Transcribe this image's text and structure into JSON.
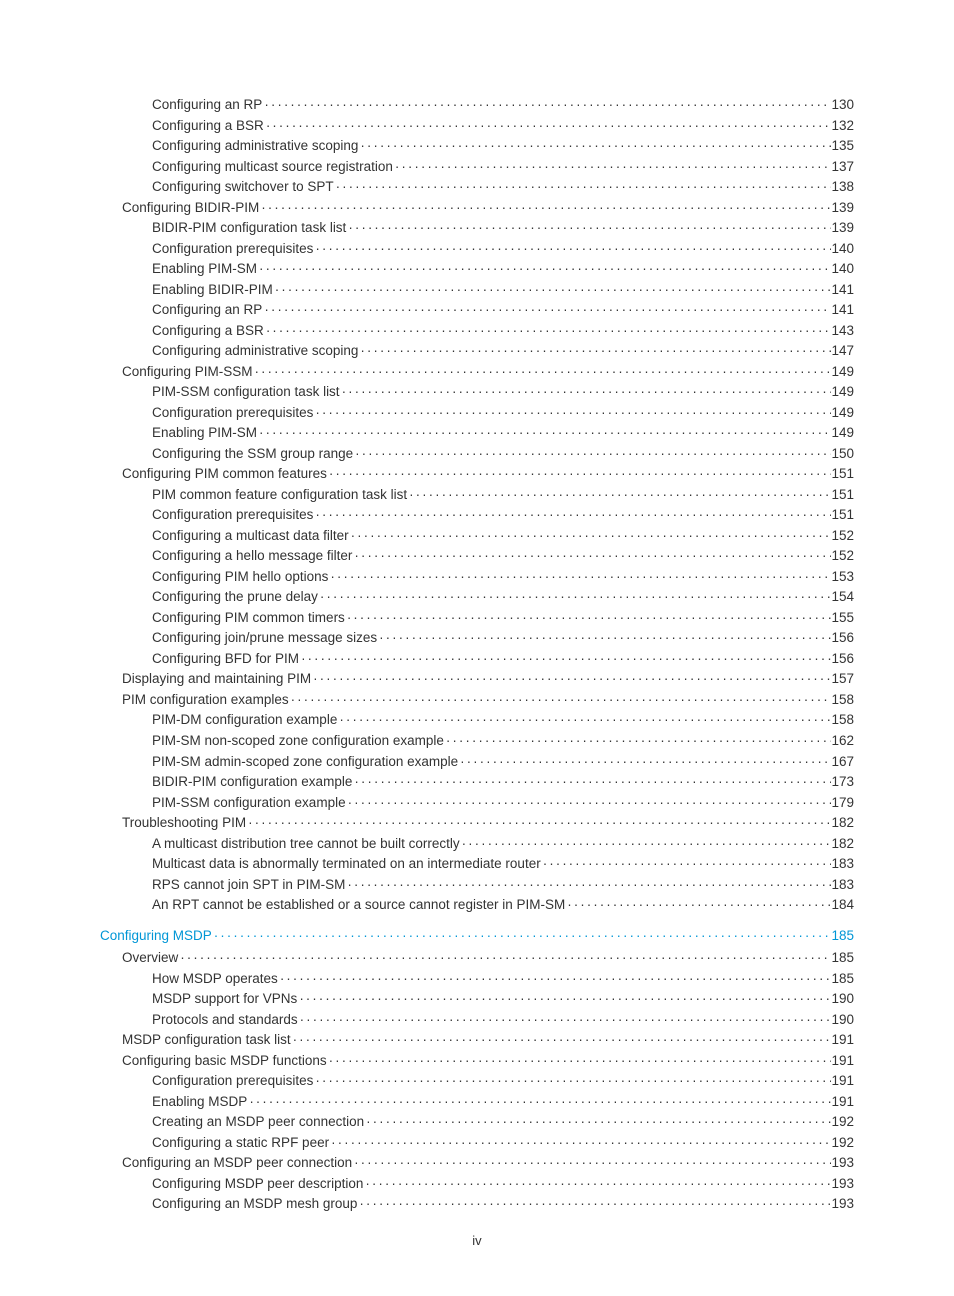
{
  "page_number_label": "iv",
  "entries": [
    {
      "level": 2,
      "title": "Configuring an RP",
      "page": "130",
      "heading": false
    },
    {
      "level": 2,
      "title": "Configuring a BSR",
      "page": "132",
      "heading": false
    },
    {
      "level": 2,
      "title": "Configuring administrative scoping",
      "page": "135",
      "heading": false
    },
    {
      "level": 2,
      "title": "Configuring multicast source registration",
      "page": "137",
      "heading": false
    },
    {
      "level": 2,
      "title": "Configuring switchover to SPT",
      "page": "138",
      "heading": false
    },
    {
      "level": 1,
      "title": "Configuring BIDIR-PIM",
      "page": "139",
      "heading": false
    },
    {
      "level": 2,
      "title": "BIDIR-PIM configuration task list",
      "page": "139",
      "heading": false
    },
    {
      "level": 2,
      "title": "Configuration prerequisites",
      "page": "140",
      "heading": false
    },
    {
      "level": 2,
      "title": "Enabling PIM-SM",
      "page": "140",
      "heading": false
    },
    {
      "level": 2,
      "title": "Enabling BIDIR-PIM",
      "page": "141",
      "heading": false
    },
    {
      "level": 2,
      "title": "Configuring an RP",
      "page": "141",
      "heading": false
    },
    {
      "level": 2,
      "title": "Configuring a BSR",
      "page": "143",
      "heading": false
    },
    {
      "level": 2,
      "title": "Configuring administrative scoping",
      "page": "147",
      "heading": false
    },
    {
      "level": 1,
      "title": "Configuring PIM-SSM",
      "page": "149",
      "heading": false
    },
    {
      "level": 2,
      "title": "PIM-SSM configuration task list",
      "page": "149",
      "heading": false
    },
    {
      "level": 2,
      "title": "Configuration prerequisites",
      "page": "149",
      "heading": false
    },
    {
      "level": 2,
      "title": "Enabling PIM-SM",
      "page": "149",
      "heading": false
    },
    {
      "level": 2,
      "title": "Configuring the SSM group range",
      "page": "150",
      "heading": false
    },
    {
      "level": 1,
      "title": "Configuring PIM common features",
      "page": "151",
      "heading": false
    },
    {
      "level": 2,
      "title": "PIM common feature configuration task list",
      "page": "151",
      "heading": false
    },
    {
      "level": 2,
      "title": "Configuration prerequisites",
      "page": "151",
      "heading": false
    },
    {
      "level": 2,
      "title": "Configuring a multicast data filter",
      "page": "152",
      "heading": false
    },
    {
      "level": 2,
      "title": "Configuring a hello message filter",
      "page": "152",
      "heading": false
    },
    {
      "level": 2,
      "title": "Configuring PIM hello options",
      "page": "153",
      "heading": false
    },
    {
      "level": 2,
      "title": "Configuring the prune delay",
      "page": "154",
      "heading": false
    },
    {
      "level": 2,
      "title": "Configuring PIM common timers",
      "page": "155",
      "heading": false
    },
    {
      "level": 2,
      "title": "Configuring join/prune message sizes",
      "page": "156",
      "heading": false
    },
    {
      "level": 2,
      "title": "Configuring BFD for PIM",
      "page": "156",
      "heading": false
    },
    {
      "level": 1,
      "title": "Displaying and maintaining PIM",
      "page": "157",
      "heading": false
    },
    {
      "level": 1,
      "title": "PIM configuration examples",
      "page": "158",
      "heading": false
    },
    {
      "level": 2,
      "title": "PIM-DM configuration example",
      "page": "158",
      "heading": false
    },
    {
      "level": 2,
      "title": "PIM-SM non-scoped zone configuration example",
      "page": "162",
      "heading": false
    },
    {
      "level": 2,
      "title": "PIM-SM admin-scoped zone configuration example",
      "page": "167",
      "heading": false
    },
    {
      "level": 2,
      "title": "BIDIR-PIM configuration example",
      "page": "173",
      "heading": false
    },
    {
      "level": 2,
      "title": "PIM-SSM configuration example",
      "page": "179",
      "heading": false
    },
    {
      "level": 1,
      "title": "Troubleshooting PIM",
      "page": "182",
      "heading": false
    },
    {
      "level": 2,
      "title": "A multicast distribution tree cannot be built correctly",
      "page": "182",
      "heading": false
    },
    {
      "level": 2,
      "title": "Multicast data is abnormally terminated on an intermediate router",
      "page": "183",
      "heading": false
    },
    {
      "level": 2,
      "title": "RPS cannot join SPT in PIM-SM",
      "page": "183",
      "heading": false
    },
    {
      "level": 2,
      "title": "An RPT cannot be established or a source cannot register in PIM-SM",
      "page": "184",
      "heading": false
    },
    {
      "level": 0,
      "title": "Configuring MSDP",
      "page": "185",
      "heading": true
    },
    {
      "level": 1,
      "title": "Overview",
      "page": "185",
      "heading": false
    },
    {
      "level": 2,
      "title": "How MSDP operates",
      "page": "185",
      "heading": false
    },
    {
      "level": 2,
      "title": "MSDP support for VPNs",
      "page": "190",
      "heading": false
    },
    {
      "level": 2,
      "title": "Protocols and standards",
      "page": "190",
      "heading": false
    },
    {
      "level": 1,
      "title": "MSDP configuration task list",
      "page": "191",
      "heading": false
    },
    {
      "level": 1,
      "title": "Configuring basic MSDP functions",
      "page": "191",
      "heading": false
    },
    {
      "level": 2,
      "title": "Configuration prerequisites",
      "page": "191",
      "heading": false
    },
    {
      "level": 2,
      "title": "Enabling MSDP",
      "page": "191",
      "heading": false
    },
    {
      "level": 2,
      "title": "Creating an MSDP peer connection",
      "page": "192",
      "heading": false
    },
    {
      "level": 2,
      "title": "Configuring a static RPF peer",
      "page": "192",
      "heading": false
    },
    {
      "level": 1,
      "title": "Configuring an MSDP peer connection",
      "page": "193",
      "heading": false
    },
    {
      "level": 2,
      "title": "Configuring MSDP peer description",
      "page": "193",
      "heading": false
    },
    {
      "level": 2,
      "title": "Configuring an MSDP mesh group",
      "page": "193",
      "heading": false
    }
  ]
}
